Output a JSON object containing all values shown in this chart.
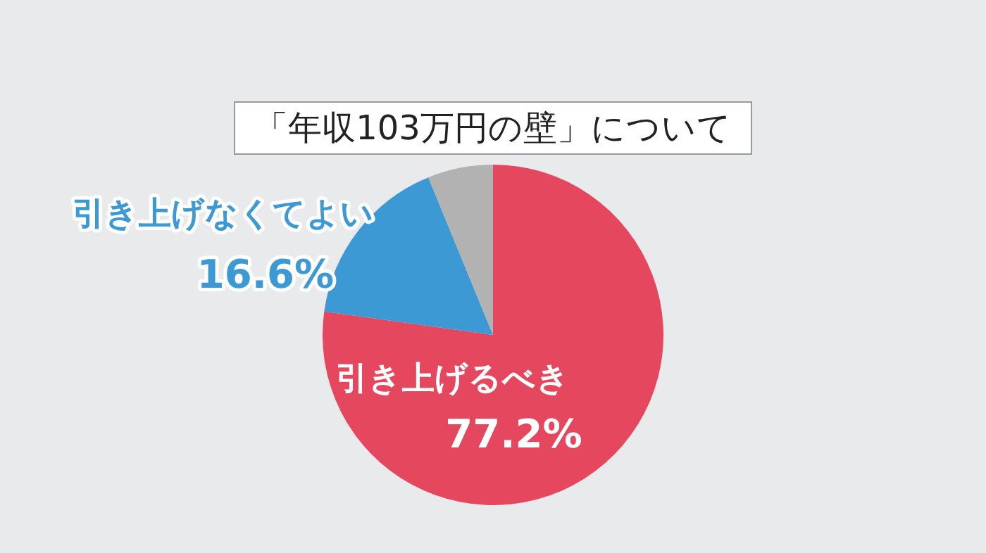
{
  "chart_data": {
    "type": "pie",
    "title": "「年収103万円の壁」について",
    "categories": [
      "引き上げるべき",
      "引き上げなくてよい",
      null
    ],
    "values": [
      77.2,
      16.6,
      6.2
    ],
    "colors": [
      "#e5475f",
      "#3c99d4",
      "#b2b2b2"
    ],
    "value_labels": [
      "77.2%",
      "16.6%",
      null
    ],
    "legend": false
  }
}
